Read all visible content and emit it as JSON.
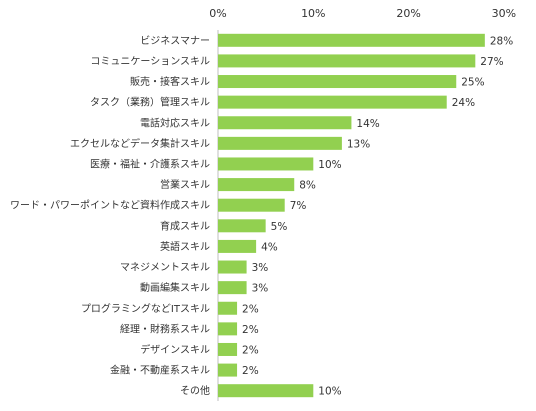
{
  "chart_data": {
    "type": "bar",
    "orientation": "horizontal",
    "categories": [
      "ビジネスマナー",
      "コミュニケーションスキル",
      "販売・接客スキル",
      "タスク（業務）管理スキル",
      "電話対応スキル",
      "エクセルなどデータ集計スキル",
      "医療・福祉・介護系スキル",
      "営業スキル",
      "ワード・パワーポイントなど資料作成スキル",
      "育成スキル",
      "英語スキル",
      "マネジメントスキル",
      "動画編集スキル",
      "プログラミングなどITスキル",
      "経理・財務系スキル",
      "デザインスキル",
      "金融・不動産系スキル",
      "その他"
    ],
    "values": [
      28,
      27,
      25,
      24,
      14,
      13,
      10,
      8,
      7,
      5,
      4,
      3,
      3,
      2,
      2,
      2,
      2,
      10
    ],
    "data_labels": [
      "28%",
      "27%",
      "25%",
      "24%",
      "14%",
      "13%",
      "10%",
      "8%",
      "7%",
      "5%",
      "4%",
      "3%",
      "3%",
      "2%",
      "2%",
      "2%",
      "2%",
      "10%"
    ],
    "ticks": [
      0,
      10,
      20,
      30
    ],
    "tick_labels": [
      "0%",
      "10%",
      "20%",
      "30%"
    ],
    "xlim": [
      0,
      30
    ],
    "axis_position": "top",
    "grid": false,
    "legend": "none",
    "title": "",
    "xlabel": "",
    "ylabel": "",
    "bar_color": "#92d050",
    "axis_color": "#bfbfbf"
  }
}
